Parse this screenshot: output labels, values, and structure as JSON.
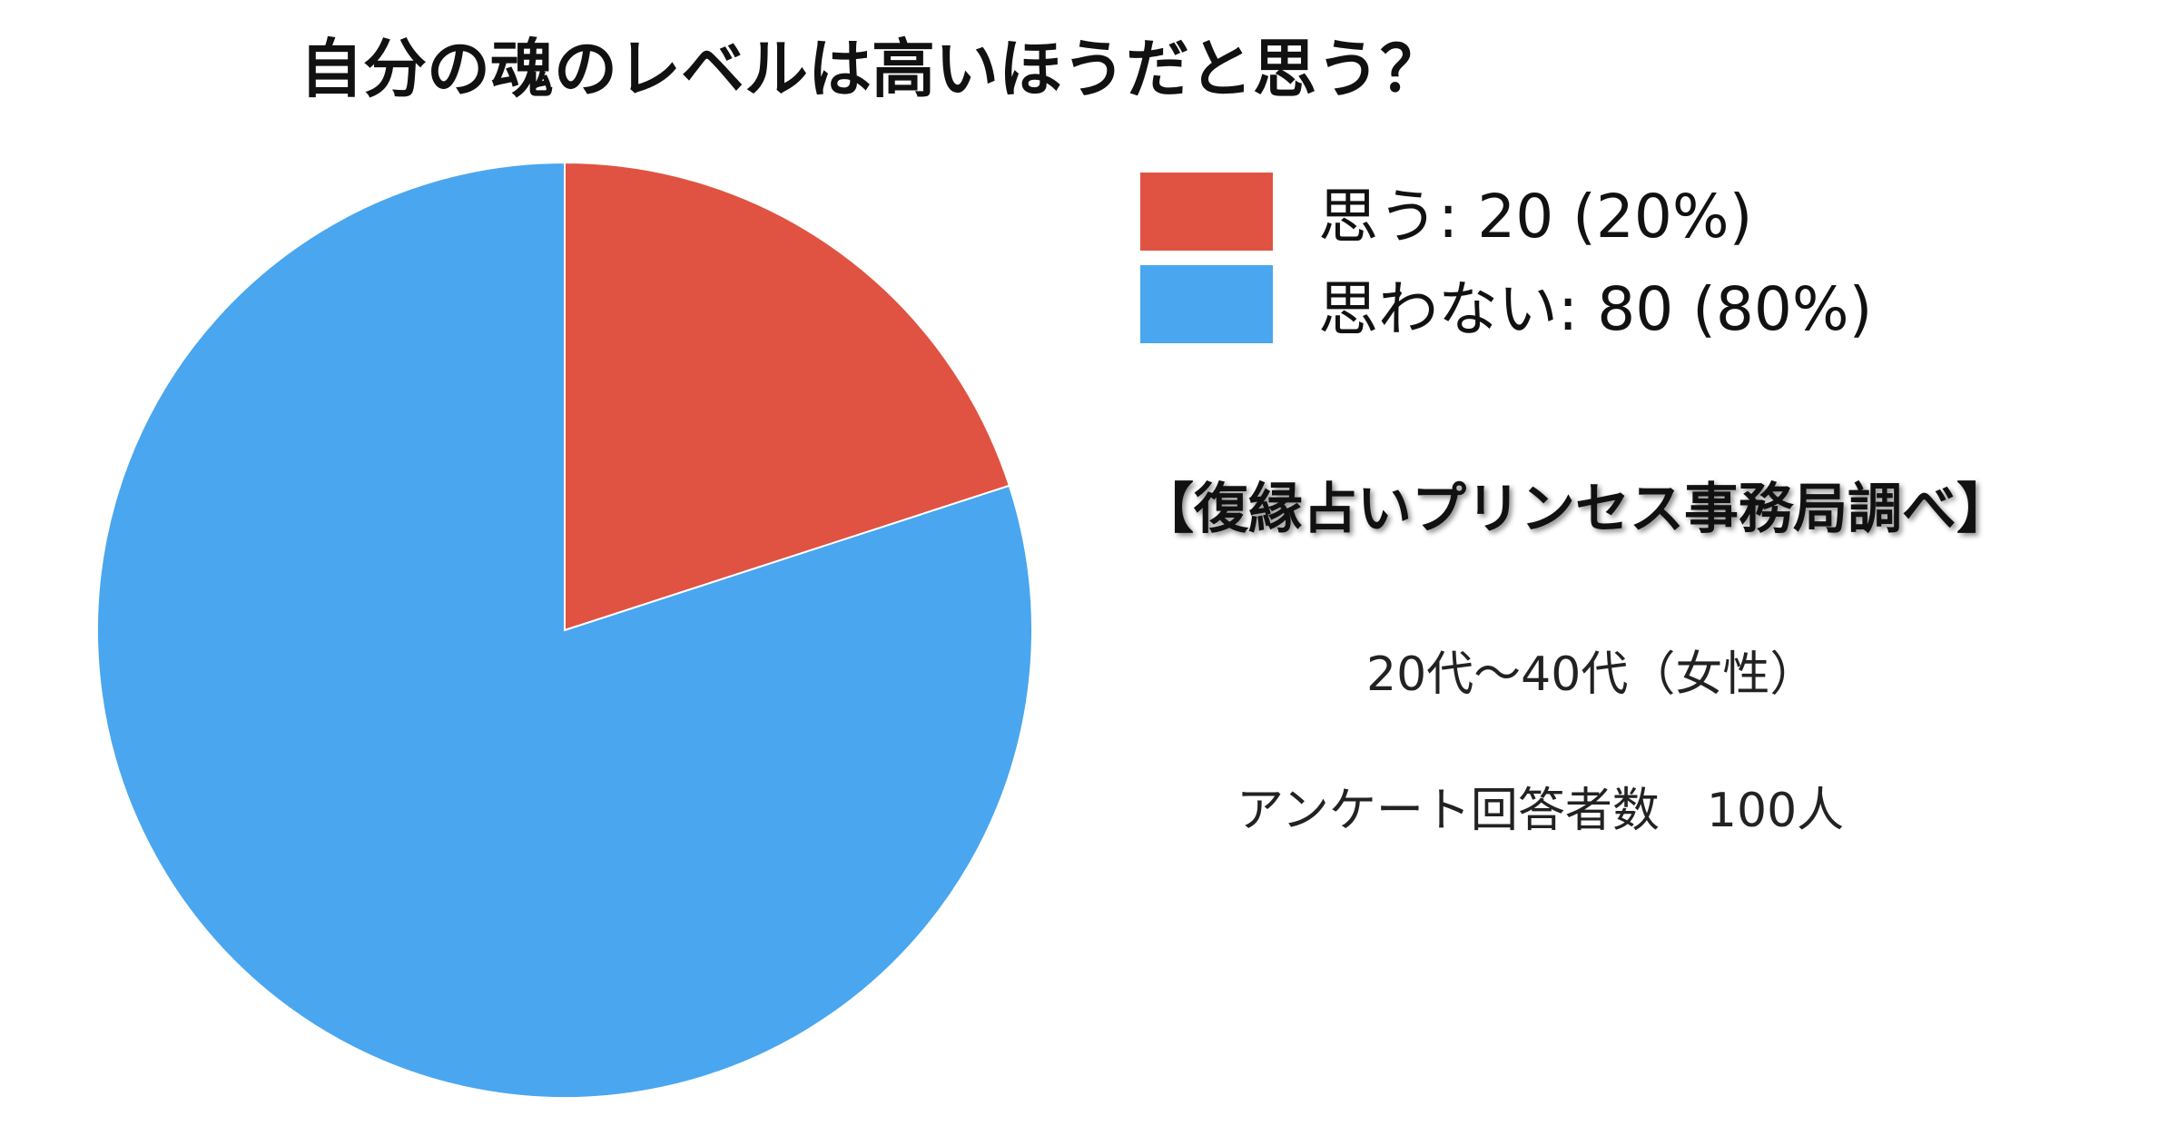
{
  "chart_data": {
    "type": "pie",
    "title": "自分の魂のレベルは高いほうだと思う？",
    "slices": [
      {
        "label": "思う",
        "value": 20,
        "percent": 20,
        "color": "#e05342",
        "legend_text": "思う: 20 (20%)"
      },
      {
        "label": "思わない",
        "value": 80,
        "percent": 80,
        "color": "#4aa6ee",
        "legend_text": "思わない: 80 (80%)"
      }
    ],
    "start_angle_deg": 0,
    "direction": "clockwise",
    "legend_position": "top-right"
  },
  "annotations": {
    "source": "【復縁占いプリンセス事務局調べ】",
    "demographic": "20代〜40代（女性）",
    "respondents": "アンケート回答者数　100人"
  }
}
